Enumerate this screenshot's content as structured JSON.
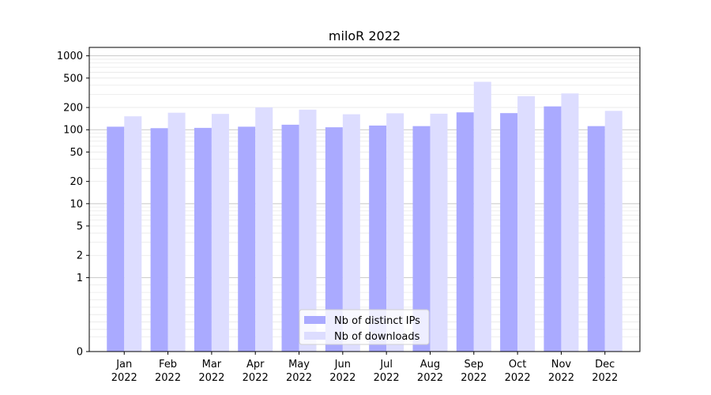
{
  "chart_data": {
    "type": "bar",
    "title": "miloR 2022",
    "xlabel": "",
    "ylabel": "",
    "y_scale": "symlog",
    "ylim": [
      0,
      1300
    ],
    "y_ticks": [
      0,
      1,
      2,
      5,
      10,
      20,
      50,
      100,
      200,
      500,
      1000
    ],
    "y_tick_labels": [
      "0",
      "1",
      "2",
      "5",
      "10",
      "20",
      "50",
      "100",
      "200",
      "500",
      "1000"
    ],
    "grid": true,
    "legend_position": "bottom-center",
    "categories": [
      {
        "month": "Jan",
        "year": "2022"
      },
      {
        "month": "Feb",
        "year": "2022"
      },
      {
        "month": "Mar",
        "year": "2022"
      },
      {
        "month": "Apr",
        "year": "2022"
      },
      {
        "month": "May",
        "year": "2022"
      },
      {
        "month": "Jun",
        "year": "2022"
      },
      {
        "month": "Jul",
        "year": "2022"
      },
      {
        "month": "Aug",
        "year": "2022"
      },
      {
        "month": "Sep",
        "year": "2022"
      },
      {
        "month": "Oct",
        "year": "2022"
      },
      {
        "month": "Nov",
        "year": "2022"
      },
      {
        "month": "Dec",
        "year": "2022"
      }
    ],
    "series": [
      {
        "name": "Nb of distinct IPs",
        "color": "#aaaaff",
        "values": [
          110,
          105,
          106,
          110,
          117,
          108,
          114,
          112,
          172,
          168,
          207,
          112
        ]
      },
      {
        "name": "Nb of downloads",
        "color": "#ddddff",
        "values": [
          152,
          170,
          164,
          201,
          187,
          162,
          167,
          165,
          445,
          285,
          310,
          180
        ]
      }
    ]
  }
}
